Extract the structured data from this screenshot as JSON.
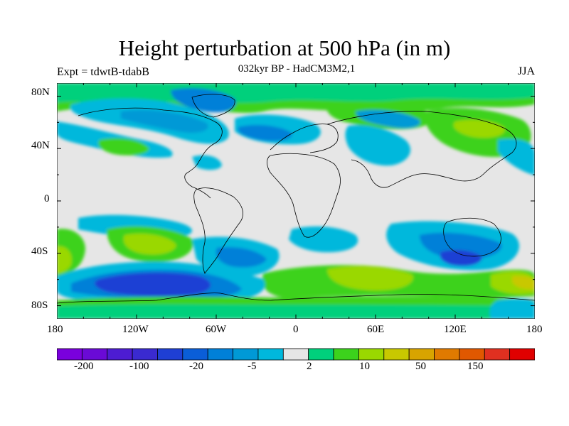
{
  "title": "Height perturbation at 500 hPa (in m)",
  "subtitle": "032kyr BP - HadCM3M2,1",
  "experiment": "Expt = tdwtB-tdabB",
  "season": "JJA",
  "map": {
    "projection": "cylindrical equidistant",
    "lon_range": [
      -180,
      180
    ],
    "lat_range": [
      -90,
      90
    ],
    "x_ticks": [
      "180",
      "120W",
      "60W",
      "0",
      "60E",
      "120E",
      "180"
    ],
    "y_ticks": [
      "80N",
      "40N",
      "0",
      "40S",
      "80S"
    ],
    "background_color": "#e6e6e6",
    "coastline_color": "#000000"
  },
  "colorbar": {
    "labels": [
      "-200",
      "-100",
      "-20",
      "-5",
      "2",
      "10",
      "50",
      "150"
    ],
    "colors": [
      "#7a00dd",
      "#6a0ad6",
      "#4d1cd2",
      "#3a2ad0",
      "#1f3fd4",
      "#0a5ed8",
      "#0080d8",
      "#0099d6",
      "#00b8dc",
      "#e6e6e6",
      "#00d07c",
      "#3cd21c",
      "#9ad800",
      "#c8c800",
      "#d8a400",
      "#e07a00",
      "#e05800",
      "#e03020",
      "#e00000"
    ]
  }
}
